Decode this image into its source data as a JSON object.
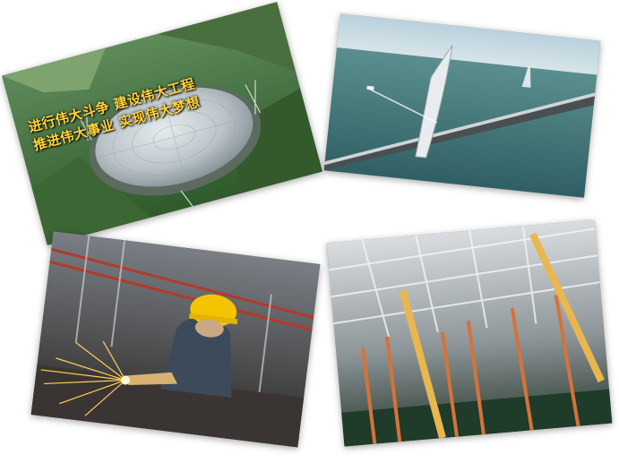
{
  "photos": [
    {
      "subject": "fast-radio-telescope-photo",
      "caption_lines": [
        "进行伟大斗争 建设伟大工程",
        "推进伟大事业 实现伟大梦想"
      ]
    },
    {
      "subject": "sea-bridge-photo"
    },
    {
      "subject": "welder-sparks-photo"
    },
    {
      "subject": "construction-formwork-photo"
    }
  ],
  "colors": {
    "caption_text": "#ffd23a",
    "background": "#ffffff"
  }
}
